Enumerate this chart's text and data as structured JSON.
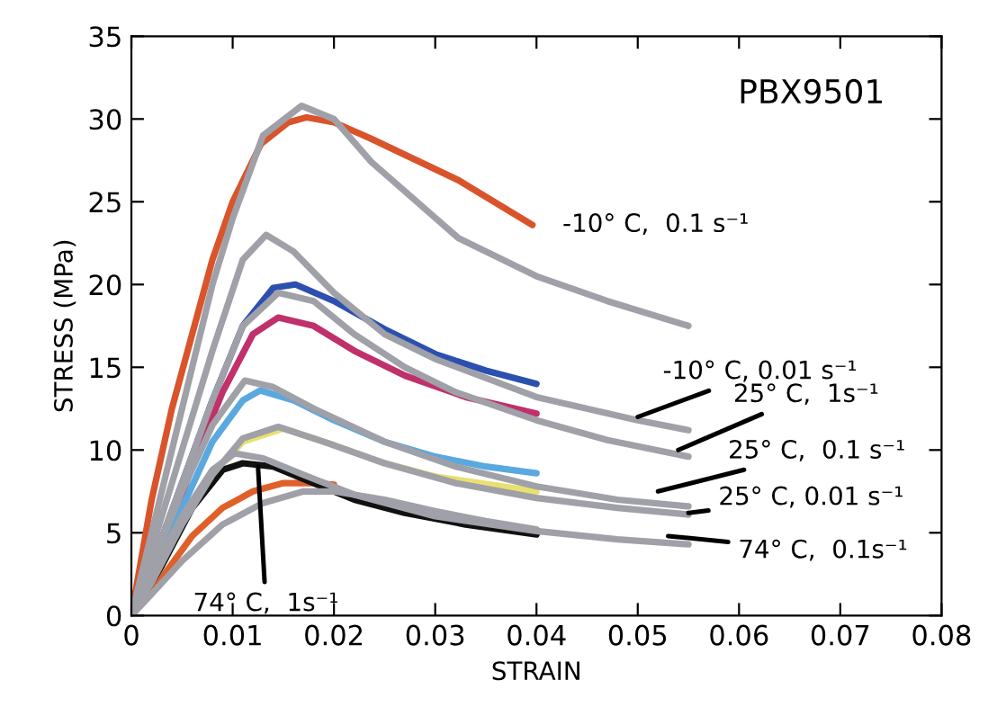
{
  "chart_data": {
    "type": "line",
    "title": "PBX9501",
    "xlabel": "STRAIN",
    "ylabel": "STRESS (MPa)",
    "xlim": [
      0,
      0.08
    ],
    "ylim": [
      0,
      35
    ],
    "xticks": [
      0,
      0.01,
      0.02,
      0.03,
      0.04,
      0.05,
      0.06,
      0.07,
      0.08
    ],
    "yticks": [
      0,
      5,
      10,
      15,
      20,
      25,
      30,
      35
    ],
    "grid": false,
    "legend": false,
    "marker": "none",
    "line_style": "solid",
    "series": [
      {
        "color": "#d9542b",
        "x": [
          0,
          0.002,
          0.004,
          0.006,
          0.008,
          0.01,
          0.0128,
          0.0155,
          0.0173,
          0.02,
          0.0237,
          0.0323,
          0.0396
        ],
        "values": [
          0,
          7,
          12.5,
          17,
          21.5,
          25,
          28.5,
          29.8,
          30.1,
          29.8,
          28.8,
          26.3,
          23.6
        ]
      },
      {
        "color": "#2b50b0",
        "x": [
          0,
          0.002,
          0.005,
          0.008,
          0.011,
          0.014,
          0.0162,
          0.02,
          0.025,
          0.03,
          0.035,
          0.04
        ],
        "values": [
          0,
          3,
          8,
          13,
          17.5,
          19.8,
          20,
          19,
          17.3,
          15.8,
          14.8,
          14
        ]
      },
      {
        "color": "#c0306a",
        "x": [
          0,
          0.003,
          0.006,
          0.009,
          0.012,
          0.0145,
          0.018,
          0.022,
          0.027,
          0.033,
          0.04
        ],
        "values": [
          0,
          4,
          9,
          13.5,
          17,
          18,
          17.5,
          16,
          14.5,
          13.2,
          12.2
        ]
      },
      {
        "color": "#5aa8e0",
        "x": [
          0,
          0.002,
          0.005,
          0.008,
          0.011,
          0.0127,
          0.016,
          0.02,
          0.025,
          0.03,
          0.035,
          0.04
        ],
        "values": [
          0,
          2.5,
          6.5,
          10.5,
          13,
          13.6,
          13,
          11.8,
          10.5,
          9.6,
          9,
          8.6
        ]
      },
      {
        "color": "#e8e070",
        "x": [
          0.008,
          0.011,
          0.015,
          0.02,
          0.025,
          0.03,
          0.04
        ],
        "values": [
          8.5,
          10.5,
          11.3,
          10.3,
          9.2,
          8.4,
          7.5
        ]
      },
      {
        "color": "#e0602a",
        "x": [
          0,
          0.002,
          0.0035,
          0.006,
          0.009,
          0.012,
          0.015,
          0.018,
          0.02
        ],
        "values": [
          0,
          1.5,
          2.7,
          4.8,
          6.5,
          7.5,
          8,
          8,
          7.9
        ]
      },
      {
        "color": "#111111",
        "x": [
          0,
          0.003,
          0.006,
          0.009,
          0.011,
          0.014,
          0.018,
          0.022,
          0.027,
          0.033,
          0.04
        ],
        "values": [
          0,
          3,
          6.5,
          8.8,
          9.2,
          9.0,
          8,
          7,
          6.2,
          5.5,
          4.9
        ]
      },
      {
        "color": "#a0a0a8",
        "x": [
          0,
          0.002,
          0.004,
          0.006,
          0.008,
          0.01,
          0.013,
          0.0168,
          0.02,
          0.0237,
          0.0323,
          0.04,
          0.047,
          0.055
        ],
        "values": [
          0,
          5,
          10,
          15,
          20,
          24,
          29,
          30.8,
          30,
          27.4,
          22.8,
          20.5,
          19,
          17.5
        ]
      },
      {
        "color": "#a0a0a8",
        "x": [
          0,
          0.002,
          0.005,
          0.008,
          0.011,
          0.0133,
          0.016,
          0.02,
          0.025,
          0.03,
          0.04,
          0.05,
          0.055
        ],
        "values": [
          0,
          4,
          10,
          16,
          21.5,
          23,
          22,
          19.5,
          17,
          15.5,
          13.2,
          11.8,
          11.2
        ]
      },
      {
        "color": "#a0a0a8",
        "x": [
          0,
          0.002,
          0.005,
          0.008,
          0.011,
          0.0145,
          0.018,
          0.022,
          0.027,
          0.032,
          0.04,
          0.047,
          0.055
        ],
        "values": [
          0,
          3,
          8,
          13,
          17.5,
          19.5,
          19,
          17,
          15,
          13.5,
          11.8,
          10.6,
          9.6
        ]
      },
      {
        "color": "#a0a0a8",
        "x": [
          0,
          0.002,
          0.005,
          0.008,
          0.0112,
          0.014,
          0.018,
          0.025,
          0.032,
          0.04,
          0.048,
          0.055
        ],
        "values": [
          0,
          3,
          7.5,
          11.5,
          14.2,
          13.8,
          12.5,
          10.5,
          9,
          7.8,
          7,
          6.6
        ]
      },
      {
        "color": "#a0a0a8",
        "x": [
          0,
          0.002,
          0.005,
          0.008,
          0.011,
          0.0145,
          0.019,
          0.025,
          0.032,
          0.04,
          0.048,
          0.055
        ],
        "values": [
          0,
          2,
          5.5,
          8.5,
          10.7,
          11.4,
          10.5,
          9.2,
          8,
          7.1,
          6.5,
          6.1
        ]
      },
      {
        "color": "#a0a0a8",
        "x": [
          0,
          0.002,
          0.005,
          0.008,
          0.0102,
          0.013,
          0.017,
          0.022,
          0.03,
          0.04,
          0.048,
          0.055
        ],
        "values": [
          0,
          2.5,
          6,
          8.8,
          9.8,
          9.5,
          8.5,
          7.3,
          6,
          5.1,
          4.6,
          4.3
        ]
      },
      {
        "color": "#a0a0a8",
        "x": [
          0,
          0.002,
          0.005,
          0.009,
          0.013,
          0.017,
          0.02,
          0.025,
          0.03,
          0.035,
          0.04
        ],
        "values": [
          0,
          1.3,
          3.3,
          5.5,
          6.8,
          7.5,
          7.5,
          7,
          6.3,
          5.7,
          5.2
        ]
      }
    ],
    "annotations": [
      {
        "text": "-10° C,  0.1 s⁻¹",
        "x": 0.0396,
        "y": 23.6
      },
      {
        "text": "-10° C, 0.01 s⁻¹",
        "x": 0.05,
        "y": 12.0
      },
      {
        "text": "25° C,  1s⁻¹",
        "x": 0.054,
        "y": 10.0
      },
      {
        "text": "25° C,  0.1 s⁻¹",
        "x": 0.052,
        "y": 7.5
      },
      {
        "text": "25° C, 0.01 s⁻¹",
        "x": 0.055,
        "y": 6.2
      },
      {
        "text": "74° C,  0.1s⁻¹",
        "x": 0.053,
        "y": 4.8
      },
      {
        "text": "74° C,  1s⁻¹",
        "x": 0.0125,
        "y": 9.0
      }
    ]
  }
}
